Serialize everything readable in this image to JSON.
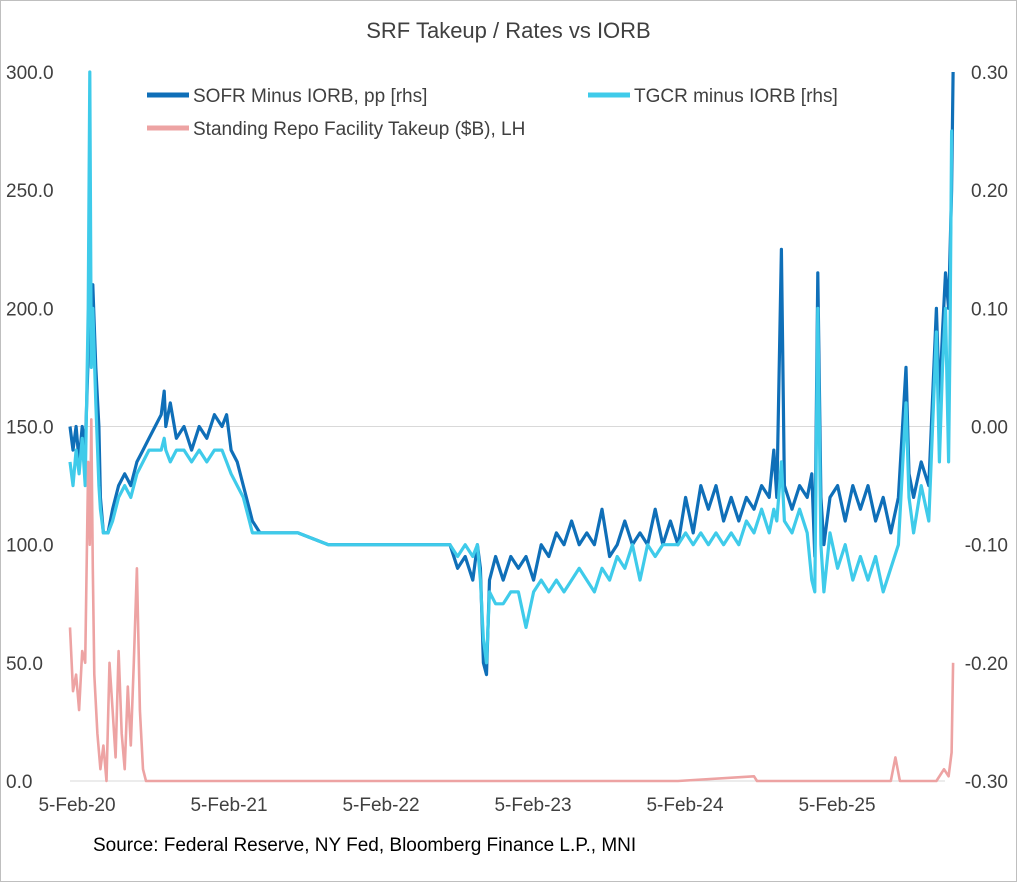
{
  "chart_data": {
    "type": "line",
    "title": "SRF Takeup / Rates vs IORB",
    "source": "Source: Federal Reserve, NY Fed, Bloomberg Finance L.P., MNI",
    "x_tick_labels": [
      "5-Feb-20",
      "5-Feb-21",
      "5-Feb-22",
      "5-Feb-23",
      "5-Feb-24",
      "5-Feb-25"
    ],
    "y_left": {
      "ticks": [
        "0.0",
        "50.0",
        "100.0",
        "150.0",
        "200.0",
        "250.0",
        "300.0"
      ],
      "ylim": [
        0,
        300
      ]
    },
    "y_right": {
      "ticks": [
        "-0.30",
        "-0.20",
        "-0.10",
        "0.00",
        "0.10",
        "0.20",
        "0.30"
      ],
      "ylim": [
        -0.3,
        0.3
      ]
    },
    "legend": [
      "SOFR Minus IORB, pp [rhs]",
      "TGCR minus IORB [rhs]",
      "Standing Repo Facility Takeup ($B), LH"
    ],
    "colors": {
      "sofr": "#0f6fb8",
      "tgcr": "#3fcbea",
      "srf": "#eda3a3",
      "grid": "#d9d9d9",
      "text": "#404040"
    },
    "x_unit": "years since 5-Feb-20",
    "series": [
      {
        "name": "SOFR Minus IORB, pp [rhs]",
        "axis": "right",
        "points": [
          [
            0.0,
            0.0
          ],
          [
            0.02,
            -0.02
          ],
          [
            0.04,
            0.0
          ],
          [
            0.06,
            -0.03
          ],
          [
            0.08,
            0.0
          ],
          [
            0.1,
            -0.02
          ],
          [
            0.12,
            0.06
          ],
          [
            0.13,
            0.13
          ],
          [
            0.14,
            0.07
          ],
          [
            0.15,
            0.12
          ],
          [
            0.17,
            0.05
          ],
          [
            0.19,
            0.0
          ],
          [
            0.2,
            -0.06
          ],
          [
            0.22,
            -0.09
          ],
          [
            0.25,
            -0.09
          ],
          [
            0.28,
            -0.07
          ],
          [
            0.32,
            -0.05
          ],
          [
            0.36,
            -0.04
          ],
          [
            0.4,
            -0.05
          ],
          [
            0.44,
            -0.03
          ],
          [
            0.48,
            -0.02
          ],
          [
            0.52,
            -0.01
          ],
          [
            0.56,
            0.0
          ],
          [
            0.6,
            0.01
          ],
          [
            0.62,
            0.03
          ],
          [
            0.63,
            0.0
          ],
          [
            0.66,
            0.02
          ],
          [
            0.7,
            -0.01
          ],
          [
            0.75,
            0.0
          ],
          [
            0.8,
            -0.02
          ],
          [
            0.85,
            0.0
          ],
          [
            0.9,
            -0.01
          ],
          [
            0.95,
            0.01
          ],
          [
            1.0,
            0.0
          ],
          [
            1.03,
            0.01
          ],
          [
            1.06,
            -0.02
          ],
          [
            1.1,
            -0.03
          ],
          [
            1.14,
            -0.05
          ],
          [
            1.18,
            -0.07
          ],
          [
            1.2,
            -0.08
          ],
          [
            1.25,
            -0.09
          ],
          [
            1.5,
            -0.09
          ],
          [
            1.7,
            -0.1
          ],
          [
            2.0,
            -0.1
          ],
          [
            2.2,
            -0.1
          ],
          [
            2.4,
            -0.1
          ],
          [
            2.5,
            -0.1
          ],
          [
            2.55,
            -0.12
          ],
          [
            2.6,
            -0.11
          ],
          [
            2.65,
            -0.13
          ],
          [
            2.68,
            -0.1
          ],
          [
            2.7,
            -0.12
          ],
          [
            2.72,
            -0.2
          ],
          [
            2.74,
            -0.21
          ],
          [
            2.76,
            -0.13
          ],
          [
            2.8,
            -0.11
          ],
          [
            2.85,
            -0.13
          ],
          [
            2.9,
            -0.11
          ],
          [
            2.95,
            -0.12
          ],
          [
            3.0,
            -0.11
          ],
          [
            3.05,
            -0.13
          ],
          [
            3.1,
            -0.1
          ],
          [
            3.15,
            -0.11
          ],
          [
            3.2,
            -0.09
          ],
          [
            3.25,
            -0.1
          ],
          [
            3.3,
            -0.08
          ],
          [
            3.35,
            -0.1
          ],
          [
            3.4,
            -0.09
          ],
          [
            3.45,
            -0.1
          ],
          [
            3.5,
            -0.07
          ],
          [
            3.55,
            -0.11
          ],
          [
            3.6,
            -0.1
          ],
          [
            3.65,
            -0.08
          ],
          [
            3.7,
            -0.1
          ],
          [
            3.75,
            -0.09
          ],
          [
            3.8,
            -0.1
          ],
          [
            3.85,
            -0.07
          ],
          [
            3.9,
            -0.1
          ],
          [
            3.95,
            -0.08
          ],
          [
            4.0,
            -0.1
          ],
          [
            4.05,
            -0.06
          ],
          [
            4.1,
            -0.09
          ],
          [
            4.15,
            -0.05
          ],
          [
            4.2,
            -0.07
          ],
          [
            4.25,
            -0.05
          ],
          [
            4.3,
            -0.08
          ],
          [
            4.35,
            -0.06
          ],
          [
            4.4,
            -0.08
          ],
          [
            4.45,
            -0.06
          ],
          [
            4.5,
            -0.07
          ],
          [
            4.55,
            -0.05
          ],
          [
            4.6,
            -0.06
          ],
          [
            4.63,
            -0.02
          ],
          [
            4.65,
            -0.06
          ],
          [
            4.68,
            0.15
          ],
          [
            4.7,
            -0.05
          ],
          [
            4.75,
            -0.07
          ],
          [
            4.8,
            -0.05
          ],
          [
            4.85,
            -0.06
          ],
          [
            4.88,
            -0.04
          ],
          [
            4.9,
            -0.11
          ],
          [
            4.92,
            0.13
          ],
          [
            4.94,
            -0.06
          ],
          [
            4.96,
            -0.1
          ],
          [
            5.0,
            -0.06
          ],
          [
            5.05,
            -0.05
          ],
          [
            5.1,
            -0.08
          ],
          [
            5.15,
            -0.05
          ],
          [
            5.2,
            -0.07
          ],
          [
            5.25,
            -0.05
          ],
          [
            5.3,
            -0.08
          ],
          [
            5.35,
            -0.06
          ],
          [
            5.4,
            -0.09
          ],
          [
            5.45,
            -0.06
          ],
          [
            5.5,
            0.05
          ],
          [
            5.52,
            -0.04
          ],
          [
            5.55,
            -0.06
          ],
          [
            5.6,
            -0.03
          ],
          [
            5.65,
            -0.05
          ],
          [
            5.7,
            0.1
          ],
          [
            5.72,
            0.02
          ],
          [
            5.74,
            0.08
          ],
          [
            5.76,
            0.13
          ],
          [
            5.78,
            0.1
          ],
          [
            5.79,
            0.15
          ],
          [
            5.8,
            0.2
          ],
          [
            5.81,
            0.3
          ]
        ]
      },
      {
        "name": "TGCR minus IORB [rhs]",
        "axis": "right",
        "points": [
          [
            0.0,
            -0.03
          ],
          [
            0.02,
            -0.05
          ],
          [
            0.04,
            -0.02
          ],
          [
            0.06,
            -0.04
          ],
          [
            0.08,
            -0.01
          ],
          [
            0.1,
            -0.05
          ],
          [
            0.12,
            0.1
          ],
          [
            0.13,
            0.3
          ],
          [
            0.14,
            0.05
          ],
          [
            0.15,
            0.1
          ],
          [
            0.17,
            0.02
          ],
          [
            0.19,
            -0.05
          ],
          [
            0.2,
            -0.07
          ],
          [
            0.22,
            -0.09
          ],
          [
            0.25,
            -0.09
          ],
          [
            0.28,
            -0.08
          ],
          [
            0.32,
            -0.06
          ],
          [
            0.36,
            -0.05
          ],
          [
            0.4,
            -0.06
          ],
          [
            0.44,
            -0.04
          ],
          [
            0.48,
            -0.03
          ],
          [
            0.52,
            -0.02
          ],
          [
            0.56,
            -0.02
          ],
          [
            0.6,
            -0.02
          ],
          [
            0.62,
            -0.01
          ],
          [
            0.63,
            -0.02
          ],
          [
            0.66,
            -0.03
          ],
          [
            0.7,
            -0.02
          ],
          [
            0.75,
            -0.02
          ],
          [
            0.8,
            -0.03
          ],
          [
            0.85,
            -0.02
          ],
          [
            0.9,
            -0.03
          ],
          [
            0.95,
            -0.02
          ],
          [
            1.0,
            -0.02
          ],
          [
            1.03,
            -0.03
          ],
          [
            1.06,
            -0.04
          ],
          [
            1.1,
            -0.05
          ],
          [
            1.14,
            -0.06
          ],
          [
            1.18,
            -0.08
          ],
          [
            1.2,
            -0.09
          ],
          [
            1.25,
            -0.09
          ],
          [
            1.5,
            -0.09
          ],
          [
            1.7,
            -0.1
          ],
          [
            2.0,
            -0.1
          ],
          [
            2.2,
            -0.1
          ],
          [
            2.4,
            -0.1
          ],
          [
            2.5,
            -0.1
          ],
          [
            2.55,
            -0.11
          ],
          [
            2.6,
            -0.1
          ],
          [
            2.65,
            -0.11
          ],
          [
            2.68,
            -0.1
          ],
          [
            2.7,
            -0.13
          ],
          [
            2.72,
            -0.18
          ],
          [
            2.74,
            -0.2
          ],
          [
            2.76,
            -0.14
          ],
          [
            2.8,
            -0.15
          ],
          [
            2.85,
            -0.15
          ],
          [
            2.9,
            -0.14
          ],
          [
            2.95,
            -0.14
          ],
          [
            3.0,
            -0.17
          ],
          [
            3.05,
            -0.14
          ],
          [
            3.1,
            -0.13
          ],
          [
            3.15,
            -0.14
          ],
          [
            3.2,
            -0.13
          ],
          [
            3.25,
            -0.14
          ],
          [
            3.3,
            -0.13
          ],
          [
            3.35,
            -0.12
          ],
          [
            3.4,
            -0.13
          ],
          [
            3.45,
            -0.14
          ],
          [
            3.5,
            -0.12
          ],
          [
            3.55,
            -0.13
          ],
          [
            3.6,
            -0.11
          ],
          [
            3.65,
            -0.12
          ],
          [
            3.7,
            -0.1
          ],
          [
            3.75,
            -0.13
          ],
          [
            3.8,
            -0.1
          ],
          [
            3.85,
            -0.11
          ],
          [
            3.9,
            -0.1
          ],
          [
            3.95,
            -0.1
          ],
          [
            4.0,
            -0.1
          ],
          [
            4.05,
            -0.09
          ],
          [
            4.1,
            -0.1
          ],
          [
            4.15,
            -0.09
          ],
          [
            4.2,
            -0.1
          ],
          [
            4.25,
            -0.09
          ],
          [
            4.3,
            -0.1
          ],
          [
            4.35,
            -0.09
          ],
          [
            4.4,
            -0.1
          ],
          [
            4.45,
            -0.08
          ],
          [
            4.5,
            -0.09
          ],
          [
            4.55,
            -0.07
          ],
          [
            4.6,
            -0.09
          ],
          [
            4.63,
            -0.07
          ],
          [
            4.65,
            -0.08
          ],
          [
            4.68,
            -0.03
          ],
          [
            4.7,
            -0.08
          ],
          [
            4.75,
            -0.09
          ],
          [
            4.8,
            -0.07
          ],
          [
            4.85,
            -0.09
          ],
          [
            4.88,
            -0.13
          ],
          [
            4.9,
            -0.14
          ],
          [
            4.92,
            0.1
          ],
          [
            4.94,
            -0.1
          ],
          [
            4.96,
            -0.14
          ],
          [
            5.0,
            -0.09
          ],
          [
            5.05,
            -0.12
          ],
          [
            5.1,
            -0.1
          ],
          [
            5.15,
            -0.13
          ],
          [
            5.2,
            -0.11
          ],
          [
            5.25,
            -0.13
          ],
          [
            5.3,
            -0.11
          ],
          [
            5.35,
            -0.14
          ],
          [
            5.4,
            -0.12
          ],
          [
            5.45,
            -0.1
          ],
          [
            5.5,
            0.02
          ],
          [
            5.52,
            -0.06
          ],
          [
            5.55,
            -0.09
          ],
          [
            5.6,
            -0.05
          ],
          [
            5.65,
            -0.08
          ],
          [
            5.7,
            0.08
          ],
          [
            5.72,
            -0.03
          ],
          [
            5.74,
            0.05
          ],
          [
            5.76,
            0.1
          ],
          [
            5.78,
            -0.03
          ],
          [
            5.79,
            0.08
          ],
          [
            5.8,
            0.25
          ],
          [
            5.81,
            0.25
          ]
        ]
      },
      {
        "name": "Standing Repo Facility Takeup ($B), LH",
        "axis": "left",
        "points": [
          [
            0.0,
            65
          ],
          [
            0.02,
            38
          ],
          [
            0.04,
            45
          ],
          [
            0.06,
            30
          ],
          [
            0.08,
            55
          ],
          [
            0.1,
            50
          ],
          [
            0.12,
            135
          ],
          [
            0.13,
            100
          ],
          [
            0.14,
            153
          ],
          [
            0.15,
            90
          ],
          [
            0.16,
            45
          ],
          [
            0.18,
            20
          ],
          [
            0.2,
            5
          ],
          [
            0.22,
            15
          ],
          [
            0.24,
            0
          ],
          [
            0.26,
            50
          ],
          [
            0.28,
            30
          ],
          [
            0.3,
            10
          ],
          [
            0.32,
            55
          ],
          [
            0.34,
            20
          ],
          [
            0.36,
            5
          ],
          [
            0.38,
            40
          ],
          [
            0.4,
            15
          ],
          [
            0.42,
            50
          ],
          [
            0.44,
            90
          ],
          [
            0.46,
            30
          ],
          [
            0.48,
            5
          ],
          [
            0.5,
            0
          ],
          [
            0.55,
            0
          ],
          [
            1.0,
            0
          ],
          [
            2.0,
            0
          ],
          [
            3.0,
            0
          ],
          [
            4.0,
            0
          ],
          [
            4.5,
            2
          ],
          [
            4.52,
            0
          ],
          [
            5.0,
            0
          ],
          [
            5.4,
            0
          ],
          [
            5.43,
            10
          ],
          [
            5.46,
            0
          ],
          [
            5.7,
            0
          ],
          [
            5.75,
            5
          ],
          [
            5.78,
            2
          ],
          [
            5.8,
            12
          ],
          [
            5.81,
            50
          ]
        ]
      }
    ]
  }
}
